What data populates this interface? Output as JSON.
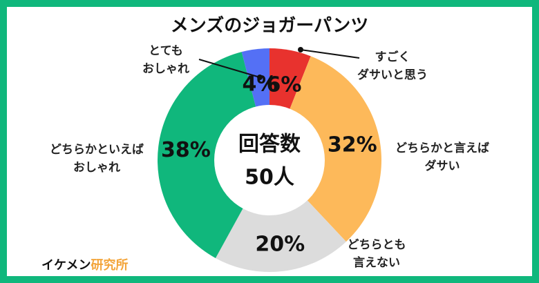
{
  "chart_data": {
    "type": "pie",
    "title": "メンズのジョガーパンツ",
    "categories": [
      "すごく\nダサいと思う",
      "どちらかと言えば\nダサい",
      "どちらとも\n言えない",
      "どちらかといえば\nおしゃれ",
      "とても\nおしゃれ"
    ],
    "values": [
      6,
      32,
      20,
      38,
      4
    ],
    "value_labels": [
      "6%",
      "32%",
      "20%",
      "38%",
      "4%"
    ],
    "colors": [
      "#e8322e",
      "#fdb95a",
      "#dcdcdc",
      "#10b77c",
      "#5470f5"
    ],
    "center_text": [
      "回答数",
      "50人"
    ]
  },
  "brand": [
    "イケメン",
    "研究所"
  ]
}
